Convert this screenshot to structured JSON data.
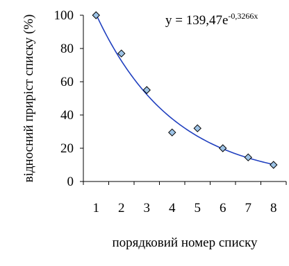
{
  "chart_data": {
    "type": "scatter",
    "x": [
      1,
      2,
      3,
      4,
      5,
      6,
      7,
      8
    ],
    "values": [
      100,
      77,
      55,
      29.5,
      32,
      20,
      14.5,
      10
    ],
    "xlabel": "порядковий номер списку",
    "ylabel": "відносний приріст списку (%)",
    "xlim": [
      0.5,
      8.5
    ],
    "ylim": [
      0,
      100
    ],
    "x_ticks": [
      "1",
      "2",
      "3",
      "4",
      "5",
      "6",
      "7",
      "8"
    ],
    "y_ticks": [
      "0",
      "20",
      "40",
      "60",
      "80",
      "100"
    ],
    "grid": false,
    "marker": "diamond",
    "marker_color": "#9dc3e6",
    "line_color": "#1f3fbf",
    "trendline": {
      "type": "exponential",
      "a": 139.47,
      "b": -0.3266,
      "equation_prefix": "y = 139,47e",
      "equation_exponent": "-0,3266x"
    }
  }
}
